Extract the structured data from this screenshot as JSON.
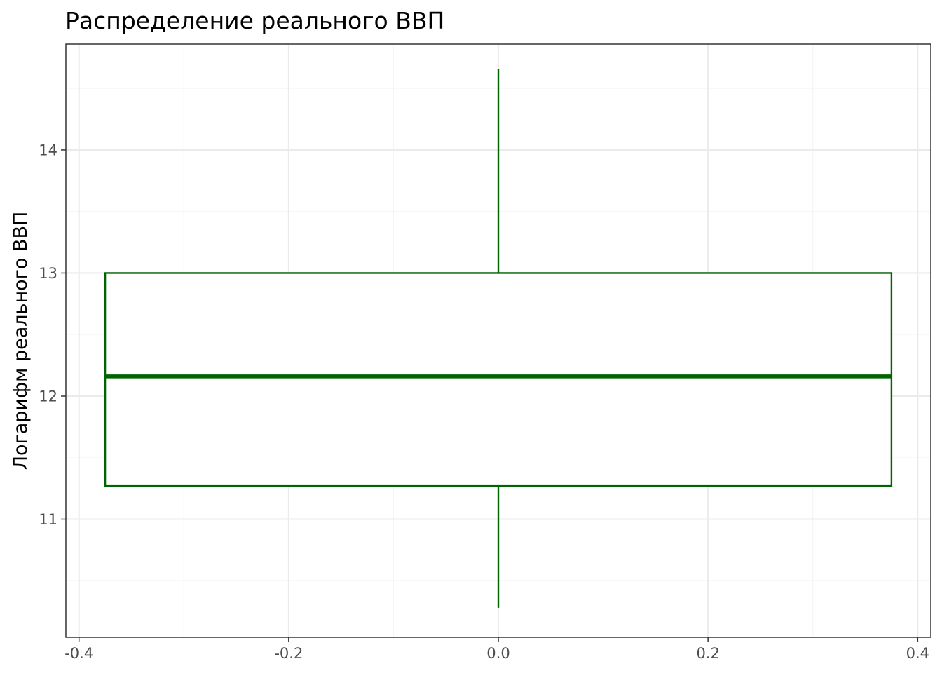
{
  "chart_data": {
    "type": "boxplot",
    "title": "Распределение реального ВВП",
    "xlabel": "",
    "ylabel": "Логарифм реального ВВП",
    "xlim": [
      -0.4125,
      0.4125
    ],
    "ylim": [
      10.04,
      14.86
    ],
    "x_ticks": [
      -0.4,
      -0.2,
      0.0,
      0.2,
      0.4
    ],
    "x_tick_labels": [
      "-0.4",
      "-0.2",
      "0.0",
      "0.2",
      "0.4"
    ],
    "y_ticks": [
      11,
      12,
      13,
      14
    ],
    "y_tick_labels": [
      "11",
      "12",
      "13",
      "14"
    ],
    "grid": true,
    "box": {
      "x_center": 0.0,
      "x_left": -0.375,
      "x_right": 0.375,
      "whisker_low": 10.28,
      "q1": 11.27,
      "median": 12.16,
      "q3": 13.0,
      "whisker_high": 14.66
    },
    "colors": {
      "box": "#006400",
      "grid_major": "#ebebeb",
      "grid_minor": "#f5f5f5",
      "panel_border": "#333333",
      "tick_text": "#4d4d4d"
    }
  }
}
